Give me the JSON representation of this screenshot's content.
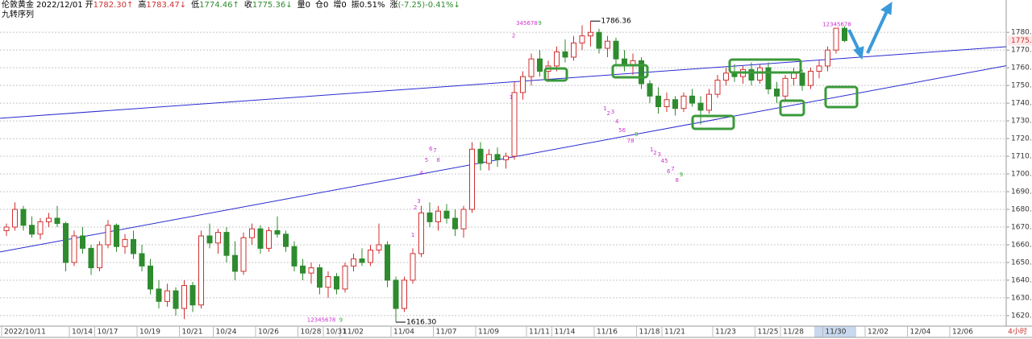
{
  "header": {
    "symbol": "伦敦黄金",
    "date": "2022/12/01",
    "quotes": [
      {
        "label": "开",
        "value": "1782.30↑"
      },
      {
        "label": "高",
        "value": "1783.47↓"
      },
      {
        "label": "低",
        "value": "1774.46↑"
      },
      {
        "label": "收",
        "value": "1775.36↓"
      },
      {
        "label": "量",
        "value": "0"
      },
      {
        "label": "仓",
        "value": "0"
      },
      {
        "label": "增",
        "value": "0"
      },
      {
        "label": "振",
        "value": "0.51%"
      },
      {
        "label": "涨",
        "value": "(-7.25)-0.41%↓"
      }
    ],
    "indicator": "九转序列",
    "period": "4小时"
  },
  "chart_data": {
    "type": "candlestick",
    "up_color": "#d03030",
    "down_color": "#2e8b2e",
    "grid": true,
    "ylim": [
      1614.5,
      1791
    ],
    "yticks": [
      {
        "value": 1620,
        "label": "1620.00"
      },
      {
        "value": 1630,
        "label": "1630.00"
      },
      {
        "value": 1640,
        "label": "1640.00"
      },
      {
        "value": 1650,
        "label": "1650.00"
      },
      {
        "value": 1660,
        "label": "1660.00"
      },
      {
        "value": 1670,
        "label": "1670.00"
      },
      {
        "value": 1680,
        "label": "1680.00"
      },
      {
        "value": 1690,
        "label": "1690.00"
      },
      {
        "value": 1700,
        "label": "1700.00"
      },
      {
        "value": 1710,
        "label": "1710.00"
      },
      {
        "value": 1720,
        "label": "1720.00"
      },
      {
        "value": 1730,
        "label": "1730.00"
      },
      {
        "value": 1740,
        "label": "1740.00"
      },
      {
        "value": 1750,
        "label": "1750.00"
      },
      {
        "value": 1760,
        "label": "1760.00"
      },
      {
        "value": 1770,
        "label": "1770.00"
      },
      {
        "value": 1780,
        "label": "1780.00"
      }
    ],
    "categories": [
      "2022/10/11",
      null,
      null,
      null,
      null,
      null,
      null,
      null,
      "10/14",
      null,
      null,
      "10/17",
      null,
      null,
      null,
      null,
      "10/19",
      null,
      null,
      null,
      null,
      "10/21",
      null,
      null,
      null,
      "10/24",
      null,
      null,
      null,
      null,
      "10/26",
      null,
      null,
      null,
      null,
      "10/28",
      null,
      null,
      "10/31",
      null,
      "11/02",
      null,
      null,
      null,
      null,
      null,
      "11/04",
      null,
      null,
      null,
      null,
      "11/07",
      null,
      null,
      null,
      null,
      "11/09",
      null,
      null,
      null,
      null,
      null,
      "11/11",
      null,
      null,
      "11/14",
      null,
      null,
      null,
      null,
      "11/16",
      null,
      null,
      null,
      null,
      "11/18",
      null,
      null,
      "11/21",
      null,
      null,
      null,
      null,
      null,
      "11/23",
      null,
      null,
      null,
      null,
      "11/25",
      null,
      null,
      "11/28",
      null,
      null,
      null,
      null,
      "11/30",
      null,
      null,
      null,
      null,
      "12/02",
      null,
      null,
      null,
      null,
      "12/04",
      null,
      null,
      null,
      null,
      "12/06",
      null,
      null,
      null,
      null,
      null
    ],
    "open": [
      1668,
      1670,
      1680,
      1671,
      1666,
      1673,
      1675,
      1672,
      1650,
      1665,
      1658,
      1647,
      1660,
      1671,
      1659,
      1663,
      1655,
      1648,
      1635,
      1628,
      1634,
      1624,
      1637,
      1626,
      1665,
      1661,
      1667,
      1654,
      1645,
      1664,
      1669,
      1658,
      1668,
      1666,
      1659,
      1648,
      1644,
      1647,
      1636,
      1642,
      1635,
      1648,
      1652,
      1650,
      1657,
      1660,
      1640,
      1624,
      1640,
      1655,
      1678,
      1673,
      1679,
      1675,
      1669,
      1680,
      1714,
      1706,
      1711,
      1708,
      1710,
      1746,
      1755,
      1765,
      1758,
      1761,
      1769,
      1766,
      1774,
      1778,
      1780,
      1771,
      1775,
      1765,
      1761,
      1764,
      1751,
      1744,
      1738,
      1742,
      1737,
      1744,
      1740,
      1736,
      1745,
      1753,
      1757,
      1755,
      1759,
      1753,
      1760,
      1748,
      1744,
      1754,
      1757,
      1750,
      1758,
      1761,
      1770,
      1782.3,
      null,
      null,
      null,
      null,
      null,
      null,
      null,
      null,
      null,
      null,
      null,
      null,
      null,
      null,
      null,
      null,
      null,
      null
    ],
    "high": [
      1672,
      1684,
      1682,
      1676,
      1675,
      1678,
      1682,
      1673,
      1668,
      1670,
      1660,
      1662,
      1674,
      1672,
      1666,
      1668,
      1660,
      1652,
      1640,
      1638,
      1636,
      1640,
      1639,
      1668,
      1672,
      1669,
      1670,
      1662,
      1667,
      1672,
      1671,
      1670,
      1676,
      1668,
      1662,
      1652,
      1650,
      1649,
      1645,
      1644,
      1650,
      1655,
      1658,
      1660,
      1672,
      1662,
      1642,
      1642,
      1658,
      1682,
      1684,
      1682,
      1683,
      1680,
      1682,
      1718,
      1718,
      1714,
      1715,
      1712,
      1752,
      1758,
      1768,
      1770,
      1764,
      1772,
      1776,
      1778,
      1784,
      1786.36,
      1782,
      1778,
      1777,
      1770,
      1768,
      1766,
      1753,
      1749,
      1746,
      1744,
      1746,
      1748,
      1744,
      1748,
      1756,
      1760,
      1762,
      1761,
      1763,
      1762,
      1763,
      1752,
      1756,
      1760,
      1759,
      1760,
      1764,
      1772,
      1782,
      1783.47,
      null,
      null,
      null,
      null,
      null,
      null,
      null,
      null,
      null,
      null,
      null,
      null,
      null,
      null,
      null,
      null,
      null,
      null
    ],
    "low": [
      1665,
      1668,
      1668,
      1664,
      1663,
      1670,
      1670,
      1645,
      1648,
      1655,
      1643,
      1645,
      1658,
      1656,
      1655,
      1652,
      1645,
      1632,
      1624,
      1625,
      1620,
      1618,
      1622,
      1624,
      1658,
      1655,
      1650,
      1640,
      1643,
      1660,
      1655,
      1656,
      1664,
      1656,
      1645,
      1640,
      1638,
      1632,
      1630,
      1632,
      1633,
      1645,
      1648,
      1648,
      1655,
      1636,
      1616.3,
      1622,
      1638,
      1653,
      1670,
      1668,
      1672,
      1665,
      1664,
      1678,
      1702,
      1702,
      1704,
      1703,
      1708,
      1742,
      1750,
      1755,
      1752,
      1758,
      1763,
      1764,
      1770,
      1772,
      1768,
      1766,
      1762,
      1758,
      1756,
      1748,
      1740,
      1734,
      1735,
      1733,
      1735,
      1738,
      1728,
      1734,
      1743,
      1750,
      1752,
      1751,
      1750,
      1751,
      1745,
      1740,
      1742,
      1750,
      1747,
      1748,
      1754,
      1758,
      1768,
      1774.46,
      null,
      null,
      null,
      null,
      null,
      null,
      null,
      null,
      null,
      null,
      null,
      null,
      null,
      null,
      null,
      null,
      null,
      null
    ],
    "close": [
      1670,
      1680,
      1671,
      1666,
      1673,
      1675,
      1672,
      1650,
      1665,
      1658,
      1647,
      1660,
      1671,
      1659,
      1663,
      1655,
      1648,
      1635,
      1628,
      1634,
      1624,
      1637,
      1626,
      1665,
      1661,
      1667,
      1654,
      1645,
      1664,
      1669,
      1658,
      1668,
      1666,
      1659,
      1648,
      1644,
      1647,
      1636,
      1642,
      1635,
      1648,
      1652,
      1650,
      1657,
      1660,
      1640,
      1624,
      1640,
      1655,
      1678,
      1673,
      1679,
      1675,
      1669,
      1680,
      1714,
      1706,
      1711,
      1708,
      1710,
      1746,
      1755,
      1765,
      1758,
      1761,
      1769,
      1766,
      1774,
      1778,
      1780,
      1771,
      1775,
      1765,
      1761,
      1764,
      1751,
      1744,
      1738,
      1742,
      1737,
      1744,
      1740,
      1736,
      1745,
      1753,
      1757,
      1755,
      1759,
      1753,
      1760,
      1748,
      1744,
      1754,
      1757,
      1750,
      1758,
      1761,
      1770,
      1782.3,
      1775.36,
      null,
      null,
      null,
      null,
      null,
      null,
      null,
      null,
      null,
      null,
      null,
      null,
      null,
      null,
      null,
      null,
      null,
      null
    ],
    "trendlines": [
      {
        "color": "#2a2ad0",
        "x": [
          0,
          117
        ],
        "y": [
          1731.7,
          1771.5
        ]
      },
      {
        "color": "#2a2ad0",
        "x": [
          0,
          117
        ],
        "y": [
          1656.6,
          1760.2
        ]
      }
    ],
    "price_labels": [
      {
        "x": 69,
        "value": 1786.36,
        "label": "1786.36"
      },
      {
        "x": 46,
        "value": 1616.3,
        "label": "1616.30"
      }
    ],
    "annotations": [
      {
        "text": "12345678",
        "x": 35.5,
        "y": 1617.5,
        "color": "#cc33cc"
      },
      {
        "text": "9",
        "x": 39.3,
        "y": 1617.5,
        "color": "#33aa33"
      },
      {
        "text": "345678",
        "x": 60.2,
        "y": 1785,
        "color": "#cc33cc"
      },
      {
        "text": "9",
        "x": 62.8,
        "y": 1785,
        "color": "#33aa33"
      },
      {
        "text": "2",
        "x": 59.7,
        "y": 1778,
        "color": "#cc33cc"
      },
      {
        "text": "1",
        "x": 59.4,
        "y": 1743.2,
        "color": "#cc33cc"
      },
      {
        "text": "12345678",
        "x": 96.4,
        "y": 1784.5,
        "color": "#cc33cc"
      },
      {
        "text": "1",
        "x": 47.8,
        "y": 1665.5,
        "color": "#cc33cc"
      },
      {
        "text": "2",
        "x": 48.1,
        "y": 1680.9,
        "color": "#cc33cc"
      },
      {
        "text": "3",
        "x": 48.5,
        "y": 1684.5,
        "color": "#cc33cc"
      },
      {
        "text": "4",
        "x": 48.8,
        "y": 1700.5,
        "color": "#cc33cc"
      },
      {
        "text": "5",
        "x": 49.4,
        "y": 1707.7,
        "color": "#cc33cc"
      },
      {
        "text": "6",
        "x": 49.9,
        "y": 1714.1,
        "color": "#cc33cc"
      },
      {
        "text": "7",
        "x": 50.4,
        "y": 1713.2,
        "color": "#cc33cc"
      },
      {
        "text": "8",
        "x": 50.8,
        "y": 1707.7,
        "color": "#cc33cc"
      },
      {
        "text": "1",
        "x": 70.5,
        "y": 1736.8,
        "color": "#cc33cc"
      },
      {
        "text": "2",
        "x": 70.9,
        "y": 1734.1,
        "color": "#cc33cc"
      },
      {
        "text": "3",
        "x": 71.4,
        "y": 1735,
        "color": "#cc33cc"
      },
      {
        "text": "4",
        "x": 71.9,
        "y": 1729.5,
        "color": "#cc33cc"
      },
      {
        "text": "56",
        "x": 72.3,
        "y": 1724.5,
        "color": "#cc33cc"
      },
      {
        "text": "78",
        "x": 73.3,
        "y": 1718.6,
        "color": "#cc33cc"
      },
      {
        "text": "9",
        "x": 74.2,
        "y": 1722.3,
        "color": "#33aa33"
      },
      {
        "text": "1",
        "x": 76,
        "y": 1713.6,
        "color": "#cc33cc"
      },
      {
        "text": "2",
        "x": 76.4,
        "y": 1711.8,
        "color": "#cc33cc"
      },
      {
        "text": "3",
        "x": 76.9,
        "y": 1710.9,
        "color": "#cc33cc"
      },
      {
        "text": "45",
        "x": 77.3,
        "y": 1707.3,
        "color": "#cc33cc"
      },
      {
        "text": "6",
        "x": 78,
        "y": 1701.4,
        "color": "#cc33cc"
      },
      {
        "text": "7",
        "x": 78.5,
        "y": 1702.7,
        "color": "#cc33cc"
      },
      {
        "text": "8",
        "x": 79,
        "y": 1696.4,
        "color": "#cc33cc"
      },
      {
        "text": "9",
        "x": 79.5,
        "y": 1699.5,
        "color": "#33aa33"
      }
    ]
  }
}
